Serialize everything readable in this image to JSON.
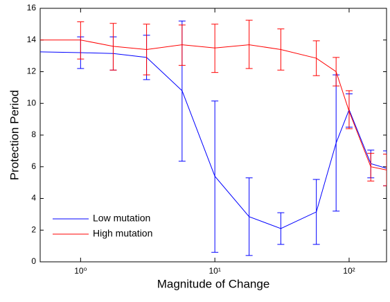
{
  "chart_data": {
    "type": "line",
    "x_scale": "log",
    "x_label": "Magnitude of Change",
    "y_label": "Protection Period",
    "x": [
      0.5,
      1,
      1.75,
      3.1,
      5.7,
      10,
      18,
      31,
      57,
      80,
      100,
      145,
      190
    ],
    "series": [
      {
        "name": "Low mutation",
        "color": "#0000ff",
        "values": [
          13.25,
          13.2,
          13.15,
          12.9,
          10.8,
          5.4,
          2.85,
          2.1,
          3.15,
          7.5,
          9.6,
          6.2,
          5.9
        ],
        "lower": [
          null,
          12.2,
          12.1,
          11.5,
          6.35,
          0.6,
          0.4,
          1.1,
          1.1,
          3.2,
          8.5,
          5.3,
          4.8
        ],
        "upper": [
          null,
          14.2,
          14.2,
          14.3,
          15.2,
          10.15,
          5.3,
          3.1,
          5.2,
          11.8,
          10.6,
          7.05,
          7.0
        ]
      },
      {
        "name": "High mutation",
        "color": "#ff0000",
        "values": [
          14.0,
          14.0,
          13.6,
          13.4,
          13.7,
          13.5,
          13.7,
          13.4,
          12.85,
          12.0,
          9.5,
          6.0,
          5.8
        ],
        "lower": [
          null,
          12.8,
          12.1,
          11.8,
          12.4,
          11.95,
          12.2,
          12.1,
          11.75,
          11.1,
          8.4,
          5.1,
          4.8
        ],
        "upper": [
          null,
          15.15,
          15.05,
          15.0,
          14.95,
          15.0,
          15.25,
          14.7,
          13.95,
          12.9,
          10.8,
          6.85,
          6.8
        ]
      }
    ],
    "xlim": [
      0.5,
      190
    ],
    "xticks": [
      {
        "value": 1,
        "label": "10⁰"
      },
      {
        "value": 10,
        "label": "10¹"
      },
      {
        "value": 100,
        "label": "10²"
      }
    ],
    "ylim": [
      0,
      16
    ],
    "yticks": [
      0,
      2,
      4,
      6,
      8,
      10,
      12,
      14,
      16
    ],
    "legend": "lower left"
  }
}
